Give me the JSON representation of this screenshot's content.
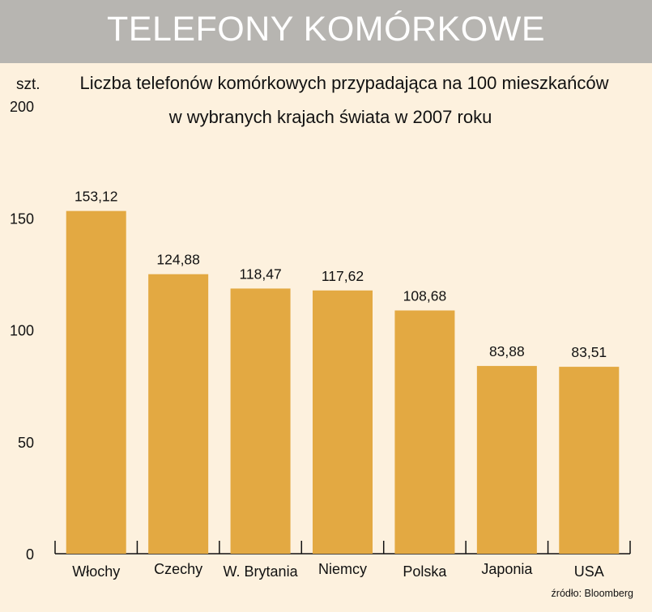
{
  "banner": {
    "title": "TELEFONY KOMÓRKOWE"
  },
  "chart_data": {
    "type": "bar",
    "title_lines": [
      "Liczba telefonów komórkowych przypadająca na 100 mieszkańców",
      "w wybranych krajach świata w 2007 roku"
    ],
    "ylabel": "szt.",
    "categories": [
      "Włochy",
      "Czechy",
      "W. Brytania",
      "Niemcy",
      "Polska",
      "Japonia",
      "USA"
    ],
    "values": [
      153.12,
      124.88,
      118.47,
      117.62,
      108.68,
      83.88,
      83.51
    ],
    "value_labels": [
      "153,12",
      "124,88",
      "118,47",
      "117,62",
      "108,68",
      "83,88",
      "83,51"
    ],
    "ylim": [
      0,
      200
    ],
    "yticks": [
      0,
      50,
      100,
      150,
      200
    ],
    "grid": false,
    "bar_color": "#e3a942",
    "source": "źródło: Bloomberg"
  }
}
